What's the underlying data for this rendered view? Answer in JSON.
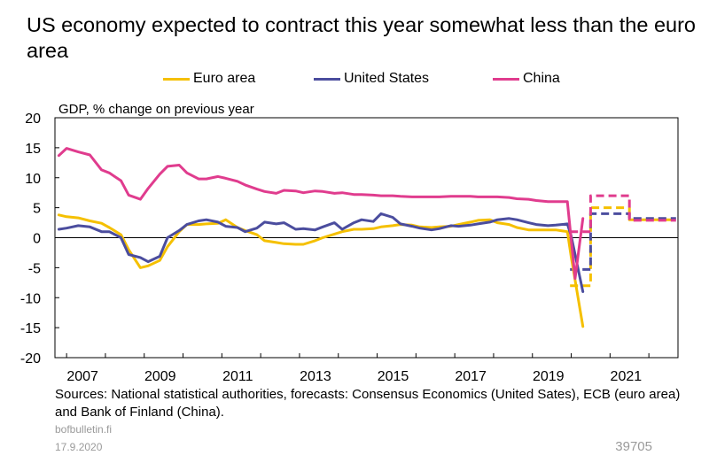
{
  "title": "US economy expected to contract this year somewhat less than the euro area",
  "chart_data": {
    "type": "line",
    "ylabel": "GDP, % change on previous year",
    "ylim": [
      -20,
      20
    ],
    "yticks": [
      20,
      15,
      10,
      5,
      0,
      -5,
      -10,
      -15,
      -20
    ],
    "xlim": [
      2006.7,
      2022.75
    ],
    "xticks": [
      2007,
      2009,
      2011,
      2013,
      2015,
      2017,
      2019,
      2021
    ],
    "legend_position": "top",
    "series": [
      {
        "name": "Euro area",
        "color": "#f5c000",
        "points": [
          [
            2006.8,
            3.8
          ],
          [
            2007.0,
            3.5
          ],
          [
            2007.3,
            3.3
          ],
          [
            2007.6,
            2.8
          ],
          [
            2007.9,
            2.4
          ],
          [
            2008.1,
            1.7
          ],
          [
            2008.4,
            0.5
          ],
          [
            2008.6,
            -2.0
          ],
          [
            2008.9,
            -5.0
          ],
          [
            2009.1,
            -4.7
          ],
          [
            2009.4,
            -3.8
          ],
          [
            2009.6,
            -1.5
          ],
          [
            2009.9,
            1.0
          ],
          [
            2010.1,
            2.2
          ],
          [
            2010.4,
            2.2
          ],
          [
            2010.6,
            2.3
          ],
          [
            2010.9,
            2.4
          ],
          [
            2011.1,
            3.0
          ],
          [
            2011.4,
            1.7
          ],
          [
            2011.6,
            1.2
          ],
          [
            2011.9,
            0.5
          ],
          [
            2012.1,
            -0.5
          ],
          [
            2012.4,
            -0.8
          ],
          [
            2012.6,
            -1.0
          ],
          [
            2012.9,
            -1.1
          ],
          [
            2013.1,
            -1.1
          ],
          [
            2013.4,
            -0.5
          ],
          [
            2013.6,
            0.0
          ],
          [
            2013.9,
            0.6
          ],
          [
            2014.1,
            1.0
          ],
          [
            2014.4,
            1.4
          ],
          [
            2014.6,
            1.4
          ],
          [
            2014.9,
            1.5
          ],
          [
            2015.1,
            1.8
          ],
          [
            2015.4,
            2.0
          ],
          [
            2015.6,
            2.2
          ],
          [
            2015.9,
            2.1
          ],
          [
            2016.1,
            1.8
          ],
          [
            2016.4,
            1.7
          ],
          [
            2016.6,
            1.8
          ],
          [
            2016.9,
            1.9
          ],
          [
            2017.1,
            2.2
          ],
          [
            2017.4,
            2.6
          ],
          [
            2017.6,
            2.9
          ],
          [
            2017.9,
            3.0
          ],
          [
            2018.1,
            2.5
          ],
          [
            2018.4,
            2.2
          ],
          [
            2018.6,
            1.7
          ],
          [
            2018.9,
            1.3
          ],
          [
            2019.1,
            1.3
          ],
          [
            2019.4,
            1.3
          ],
          [
            2019.6,
            1.3
          ],
          [
            2019.9,
            1.0
          ],
          [
            2020.0,
            -3.2
          ],
          [
            2020.3,
            -14.8
          ]
        ]
      },
      {
        "name": "United States",
        "color": "#4b4d9e",
        "points": [
          [
            2006.8,
            1.4
          ],
          [
            2007.0,
            1.6
          ],
          [
            2007.3,
            2.0
          ],
          [
            2007.6,
            1.8
          ],
          [
            2007.9,
            1.0
          ],
          [
            2008.1,
            1.0
          ],
          [
            2008.4,
            0.0
          ],
          [
            2008.6,
            -2.8
          ],
          [
            2008.9,
            -3.3
          ],
          [
            2009.1,
            -4.0
          ],
          [
            2009.4,
            -3.1
          ],
          [
            2009.6,
            0.0
          ],
          [
            2009.9,
            1.2
          ],
          [
            2010.1,
            2.2
          ],
          [
            2010.4,
            2.8
          ],
          [
            2010.6,
            3.0
          ],
          [
            2010.9,
            2.6
          ],
          [
            2011.1,
            1.9
          ],
          [
            2011.4,
            1.7
          ],
          [
            2011.6,
            1.0
          ],
          [
            2011.9,
            1.6
          ],
          [
            2012.1,
            2.6
          ],
          [
            2012.4,
            2.3
          ],
          [
            2012.6,
            2.5
          ],
          [
            2012.9,
            1.4
          ],
          [
            2013.1,
            1.5
          ],
          [
            2013.4,
            1.3
          ],
          [
            2013.6,
            1.8
          ],
          [
            2013.9,
            2.5
          ],
          [
            2014.1,
            1.4
          ],
          [
            2014.4,
            2.5
          ],
          [
            2014.6,
            3.0
          ],
          [
            2014.9,
            2.7
          ],
          [
            2015.1,
            4.0
          ],
          [
            2015.4,
            3.4
          ],
          [
            2015.6,
            2.3
          ],
          [
            2015.9,
            1.9
          ],
          [
            2016.1,
            1.6
          ],
          [
            2016.4,
            1.3
          ],
          [
            2016.6,
            1.5
          ],
          [
            2016.9,
            2.0
          ],
          [
            2017.1,
            1.9
          ],
          [
            2017.4,
            2.1
          ],
          [
            2017.6,
            2.3
          ],
          [
            2017.9,
            2.6
          ],
          [
            2018.1,
            3.0
          ],
          [
            2018.4,
            3.2
          ],
          [
            2018.6,
            3.0
          ],
          [
            2018.9,
            2.5
          ],
          [
            2019.1,
            2.2
          ],
          [
            2019.4,
            2.0
          ],
          [
            2019.6,
            2.1
          ],
          [
            2019.9,
            2.3
          ],
          [
            2020.0,
            0.3
          ],
          [
            2020.3,
            -9.0
          ]
        ]
      },
      {
        "name": "China",
        "color": "#e03c8e",
        "points": [
          [
            2006.8,
            13.7
          ],
          [
            2007.0,
            14.9
          ],
          [
            2007.3,
            14.3
          ],
          [
            2007.6,
            13.8
          ],
          [
            2007.9,
            11.3
          ],
          [
            2008.1,
            10.8
          ],
          [
            2008.4,
            9.5
          ],
          [
            2008.6,
            7.1
          ],
          [
            2008.9,
            6.4
          ],
          [
            2009.1,
            8.2
          ],
          [
            2009.4,
            10.6
          ],
          [
            2009.6,
            11.9
          ],
          [
            2009.9,
            12.1
          ],
          [
            2010.1,
            10.8
          ],
          [
            2010.4,
            9.8
          ],
          [
            2010.6,
            9.8
          ],
          [
            2010.9,
            10.2
          ],
          [
            2011.1,
            9.9
          ],
          [
            2011.4,
            9.4
          ],
          [
            2011.6,
            8.8
          ],
          [
            2011.9,
            8.1
          ],
          [
            2012.1,
            7.7
          ],
          [
            2012.4,
            7.4
          ],
          [
            2012.6,
            7.9
          ],
          [
            2012.9,
            7.8
          ],
          [
            2013.1,
            7.5
          ],
          [
            2013.4,
            7.8
          ],
          [
            2013.6,
            7.7
          ],
          [
            2013.9,
            7.4
          ],
          [
            2014.1,
            7.5
          ],
          [
            2014.4,
            7.2
          ],
          [
            2014.6,
            7.2
          ],
          [
            2014.9,
            7.1
          ],
          [
            2015.1,
            7.0
          ],
          [
            2015.4,
            7.0
          ],
          [
            2015.6,
            6.9
          ],
          [
            2015.9,
            6.8
          ],
          [
            2016.1,
            6.8
          ],
          [
            2016.4,
            6.8
          ],
          [
            2016.6,
            6.8
          ],
          [
            2016.9,
            6.9
          ],
          [
            2017.1,
            6.9
          ],
          [
            2017.4,
            6.9
          ],
          [
            2017.6,
            6.8
          ],
          [
            2017.9,
            6.8
          ],
          [
            2018.1,
            6.8
          ],
          [
            2018.4,
            6.7
          ],
          [
            2018.6,
            6.5
          ],
          [
            2018.9,
            6.4
          ],
          [
            2019.1,
            6.2
          ],
          [
            2019.4,
            6.0
          ],
          [
            2019.6,
            6.0
          ],
          [
            2019.9,
            6.0
          ],
          [
            2020.1,
            -6.8
          ],
          [
            2020.3,
            3.2
          ]
        ]
      }
    ],
    "forecasts": [
      {
        "name": "Euro area",
        "color": "#f5c000",
        "points": [
          [
            2019.97,
            -8.0
          ],
          [
            2020.5,
            -8.0
          ],
          [
            2020.5,
            -8.0
          ],
          [
            2020.5,
            5.0
          ],
          [
            2021.5,
            5.0
          ],
          [
            2021.5,
            3.0
          ],
          [
            2022.7,
            3.0
          ]
        ]
      },
      {
        "name": "United States",
        "color": "#4b4d9e",
        "points": [
          [
            2019.97,
            -5.3
          ],
          [
            2020.5,
            -5.3
          ],
          [
            2020.5,
            4.0
          ],
          [
            2021.5,
            4.0
          ],
          [
            2021.5,
            3.2
          ],
          [
            2022.7,
            3.2
          ]
        ]
      },
      {
        "name": "China",
        "color": "#e03c8e",
        "points": [
          [
            2019.97,
            1.0
          ],
          [
            2020.5,
            1.0
          ],
          [
            2020.5,
            7.0
          ],
          [
            2021.5,
            7.0
          ],
          [
            2021.5,
            2.9
          ],
          [
            2022.7,
            2.9
          ]
        ]
      }
    ]
  },
  "footer": {
    "sources": "Sources: National statistical authorities, forecasts: Consensus Economics (United Sates), ECB (euro area) and Bank of Finland (China).",
    "site": "bofbulletin.fi",
    "date": "17.9.2020",
    "code": "39705"
  }
}
